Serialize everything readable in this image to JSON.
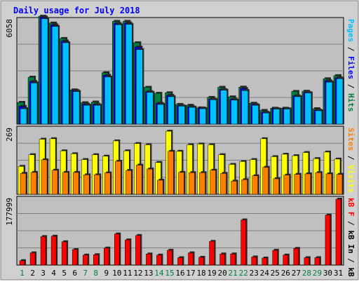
{
  "chart_data": {
    "type": "bar",
    "title": "Daily usage for July 2018",
    "categories": [
      "1",
      "2",
      "3",
      "4",
      "5",
      "6",
      "7",
      "8",
      "9",
      "10",
      "11",
      "12",
      "13",
      "14",
      "15",
      "16",
      "17",
      "18",
      "19",
      "20",
      "21",
      "22",
      "23",
      "24",
      "25",
      "26",
      "27",
      "28",
      "29",
      "30",
      "31"
    ],
    "weekend_days": [
      "1",
      "7",
      "8",
      "14",
      "15",
      "21",
      "22",
      "28",
      "29"
    ],
    "panels": [
      {
        "id": "hits",
        "max_label": "6058",
        "max": 6058,
        "ylabel_parts": [
          "Pages",
          "/",
          "Files",
          "/",
          "Hits"
        ],
        "series": [
          {
            "name": "Hits",
            "color": "#008040",
            "values": [
              1270,
              2740,
              6300,
              5900,
              5000,
              2000,
              1250,
              1290,
              3000,
              6000,
              6000,
              4750,
              2150,
              1800,
              1830,
              1150,
              1100,
              950,
              1560,
              2150,
              1590,
              2160,
              1220,
              800,
              930,
              930,
              1910,
              1920,
              900,
              2650,
              2830
            ]
          },
          {
            "name": "Files",
            "color": "#0000ff",
            "values": [
              1040,
              2490,
              6250,
              5800,
              4850,
              1960,
              1170,
              1160,
              2850,
              5880,
              5900,
              4500,
              1900,
              1220,
              1680,
              1080,
              1010,
              940,
              1460,
              2020,
              1450,
              2080,
              1150,
              700,
              900,
              900,
              1650,
              1850,
              820,
              2530,
              2700
            ]
          },
          {
            "name": "Pages",
            "color": "#00c0ff",
            "values": [
              900,
              2400,
              6150,
              5700,
              4750,
              1900,
              1100,
              1100,
              2750,
              5800,
              5820,
              4350,
              1850,
              1150,
              1600,
              1050,
              980,
              900,
              1420,
              1980,
              1400,
              1960,
              1100,
              650,
              880,
              880,
              1600,
              1820,
              780,
              2450,
              2650
            ]
          }
        ]
      },
      {
        "id": "visits",
        "max_label": "269",
        "max": 269,
        "ylabel_parts": [
          "Sites",
          "/",
          "Visits"
        ],
        "series": [
          {
            "name": "Visits",
            "color": "#ffff00",
            "values": [
              115,
              163,
              227,
              229,
              179,
              167,
              143,
              163,
              157,
              220,
              179,
              209,
              204,
              131,
              260,
              177,
              204,
              207,
              204,
              163,
              123,
              135,
              143,
              229,
              155,
              165,
              159,
              172,
              147,
              174,
              145
            ]
          },
          {
            "name": "Sites",
            "color": "#ff8000",
            "values": [
              86,
              90,
              142,
              99,
              90,
              90,
              80,
              80,
              88,
              136,
              98,
              120,
              104,
              58,
              177,
              90,
              89,
              89,
              99,
              86,
              54,
              60,
              76,
              111,
              64,
              79,
              82,
              84,
              89,
              84,
              82
            ]
          }
        ]
      },
      {
        "id": "kbytes",
        "max_label": "177999",
        "max": 177999,
        "ylabel_parts": [
          "kB F",
          "/",
          "kB In",
          "/",
          "kB Out"
        ],
        "series": [
          {
            "name": "kB F",
            "color": "#ff0000",
            "values": [
              12000,
              33000,
              77000,
              78000,
              63000,
              42000,
              27000,
              28000,
              46000,
              84000,
              68000,
              80000,
              30000,
              27000,
              40000,
              20000,
              33000,
              21000,
              64000,
              30000,
              30000,
              122000,
              22000,
              19000,
              40000,
              27000,
              45000,
              20000,
              20000,
              135000,
              178000
            ]
          }
        ]
      }
    ],
    "xlim": [
      1,
      31
    ],
    "grid": true
  }
}
